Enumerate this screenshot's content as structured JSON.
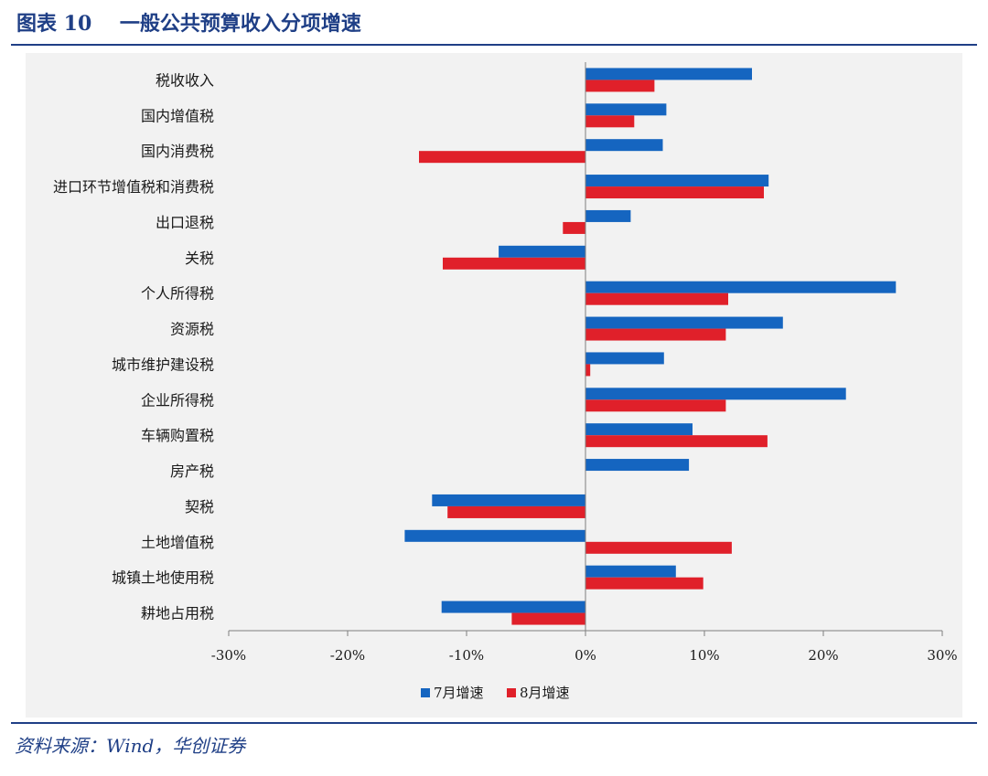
{
  "header": {
    "title": "图表 10    一般公共预算收入分项增速"
  },
  "footer": {
    "source": "资料来源：Wind，华创证券"
  },
  "colors": {
    "series1": "#1565c0",
    "series2": "#e0202a",
    "axis": "#7f7f7f",
    "title": "#1f3f86"
  },
  "chart_data": {
    "type": "bar",
    "orientation": "horizontal",
    "categories": [
      "税收收入",
      "国内增值税",
      "国内消费税",
      "进口环节增值税和消费税",
      "出口退税",
      "关税",
      "个人所得税",
      "资源税",
      "城市维护建设税",
      "企业所得税",
      "车辆购置税",
      "房产税",
      "契税",
      "土地增值税",
      "城镇土地使用税",
      "耕地占用税"
    ],
    "series": [
      {
        "name": "7月增速",
        "values": [
          14.0,
          6.8,
          6.5,
          15.4,
          3.8,
          -7.3,
          26.1,
          16.6,
          6.6,
          21.9,
          9.0,
          8.7,
          -12.9,
          -15.2,
          7.6,
          -12.1
        ]
      },
      {
        "name": "8月增速",
        "values": [
          5.8,
          4.1,
          -14.0,
          15.0,
          -1.9,
          -12.0,
          12.0,
          11.8,
          0.4,
          11.8,
          15.3,
          0.0,
          -11.6,
          12.3,
          9.9,
          -6.2
        ]
      }
    ],
    "xlim": [
      -30,
      30
    ],
    "xticks": [
      "-30%",
      "-20%",
      "-10%",
      "0%",
      "10%",
      "20%",
      "30%"
    ],
    "legend": "bottom"
  }
}
